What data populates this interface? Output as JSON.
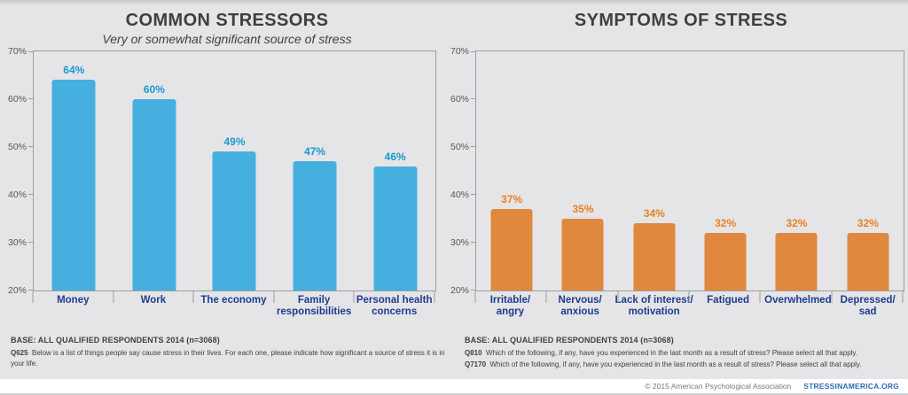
{
  "page": {
    "background": "#e5e5e7"
  },
  "chart_data": [
    {
      "type": "bar",
      "title": "COMMON STRESSORS",
      "subtitle": "Very or somewhat significant source of stress",
      "categories": [
        "Money",
        "Work",
        "The economy",
        "Family\nresponsibilities",
        "Personal health\nconcerns"
      ],
      "values": [
        64,
        60,
        49,
        47,
        46
      ],
      "value_labels": [
        "64%",
        "60%",
        "49%",
        "47%",
        "46%"
      ],
      "ylim": [
        20,
        70
      ],
      "ytick_step": 10,
      "ytick_labels": [
        "70%",
        "60%",
        "50%",
        "40%",
        "30%",
        "20%"
      ],
      "grid": false,
      "bar_color": "#45b0e0",
      "value_label_color": "#1899d1",
      "category_color": "#1e3c8f",
      "base": "BASE: ALL QUALIFIED RESPONDENTS 2014 (n=3068)",
      "questions": [
        {
          "code": "Q625",
          "text": "Below is a list of things people say cause stress in their lives. For each one, please indicate how significant a source of stress it is in your life."
        }
      ]
    },
    {
      "type": "bar",
      "title": "SYMPTOMS OF STRESS",
      "subtitle": "",
      "categories": [
        "Irritable/\nangry",
        "Nervous/\nanxious",
        "Lack of interest/\nmotivation",
        "Fatigued",
        "Overwhelmed",
        "Depressed/\nsad"
      ],
      "values": [
        37,
        35,
        34,
        32,
        32,
        32
      ],
      "value_labels": [
        "37%",
        "35%",
        "34%",
        "32%",
        "32%",
        "32%"
      ],
      "ylim": [
        20,
        70
      ],
      "ytick_step": 10,
      "ytick_labels": [
        "70%",
        "60%",
        "50%",
        "40%",
        "30%",
        "20%"
      ],
      "grid": false,
      "bar_color": "#e0883e",
      "value_label_color": "#e8801e",
      "category_color": "#1e3c8f",
      "base": "BASE: ALL QUALIFIED RESPONDENTS 2014 (n=3068)",
      "questions": [
        {
          "code": "Q810",
          "text": "Which of the following, if any, have you experienced in the last month as a result of stress? Please select all that apply."
        },
        {
          "code": "Q7170",
          "text": "Which of the following, if any, have you experienced in the last month as a result of stress? Please select all that apply."
        }
      ]
    }
  ],
  "footer": {
    "copyright": "© 2015 American Psychological Association",
    "website": "STRESSINAMERICA.ORG",
    "link_color": "#2f6db6"
  }
}
